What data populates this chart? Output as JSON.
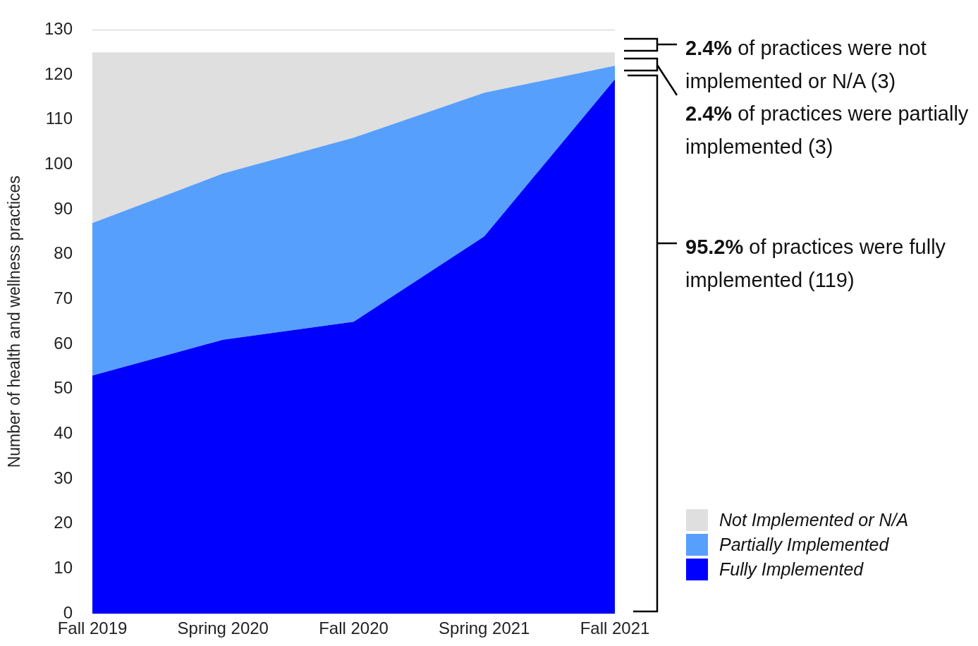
{
  "chart_data": {
    "type": "area",
    "stacked": true,
    "ylabel": "Number of health and wellness practices",
    "categories": [
      "Fall 2019",
      "Spring 2020",
      "Fall 2020",
      "Spring 2021",
      "Fall 2021"
    ],
    "series": [
      {
        "name": "Fully Implemented",
        "color": "#0000ff",
        "values": [
          53,
          61,
          65,
          84,
          119
        ]
      },
      {
        "name": "Partially Implemented",
        "color": "#579ffd",
        "values": [
          34,
          37,
          41,
          32,
          3
        ]
      },
      {
        "name": "Not Implemented or N/A",
        "color": "#dfdfdf",
        "values": [
          38,
          27,
          19,
          9,
          3
        ]
      }
    ],
    "ylim": [
      0,
      130
    ],
    "yticks": [
      0,
      10,
      20,
      30,
      40,
      50,
      60,
      70,
      80,
      90,
      100,
      110,
      120,
      130
    ],
    "grid": "y",
    "legend": "bottom right",
    "annotations": [
      "2.4% of practices were not implemented or N/A (3)",
      "2.4% of practices were partially implemented (3)",
      "95.2% of practices were fully implemented (119)"
    ]
  }
}
